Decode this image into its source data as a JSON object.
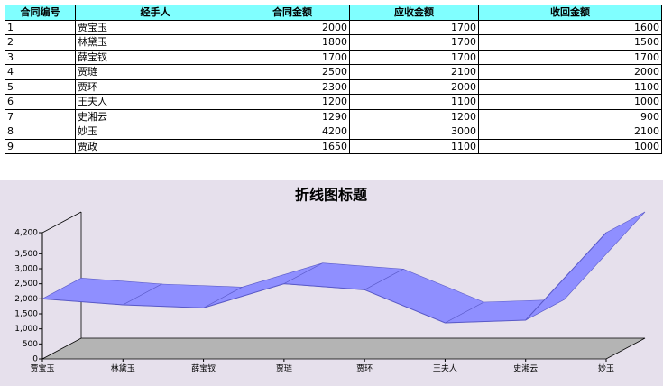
{
  "table": {
    "columns": [
      "合同编号",
      "经手人",
      "合同金额",
      "应收金额",
      "收回金额"
    ],
    "rows": [
      [
        1,
        "贾宝玉",
        2000,
        1700,
        1600
      ],
      [
        2,
        "林黛玉",
        1800,
        1700,
        1500
      ],
      [
        3,
        "薛宝钗",
        1700,
        1700,
        1700
      ],
      [
        4,
        "贾琏",
        2500,
        2100,
        2000
      ],
      [
        5,
        "贾环",
        2300,
        2000,
        1100
      ],
      [
        6,
        "王夫人",
        1200,
        1100,
        1000
      ],
      [
        7,
        "史湘云",
        1290,
        1200,
        900
      ],
      [
        8,
        "妙玉",
        4200,
        3000,
        2100
      ],
      [
        9,
        "贾政",
        1650,
        1100,
        1000
      ]
    ]
  },
  "chart_data": {
    "type": "line3d",
    "title": "折线图标题",
    "categories": [
      "贾宝玉",
      "林黛玉",
      "薛宝钗",
      "贾琏",
      "贾环",
      "王夫人",
      "史湘云",
      "妙玉"
    ],
    "values": [
      2000,
      1800,
      1700,
      2500,
      2300,
      1200,
      1290,
      4200
    ],
    "color": "#8f8fff",
    "ylim": [
      0,
      4200
    ],
    "yticks": [
      0,
      500,
      {
        "value": 1000,
        "label": "1,000"
      },
      {
        "value": 1500,
        "label": "1,500"
      },
      {
        "value": 2000,
        "label": "2,000"
      },
      {
        "value": 2500,
        "label": "2,500"
      },
      {
        "value": 3000,
        "label": "3,000"
      },
      {
        "value": 3500,
        "label": "3,500"
      },
      {
        "value": 4200,
        "label": "4,200"
      }
    ]
  }
}
